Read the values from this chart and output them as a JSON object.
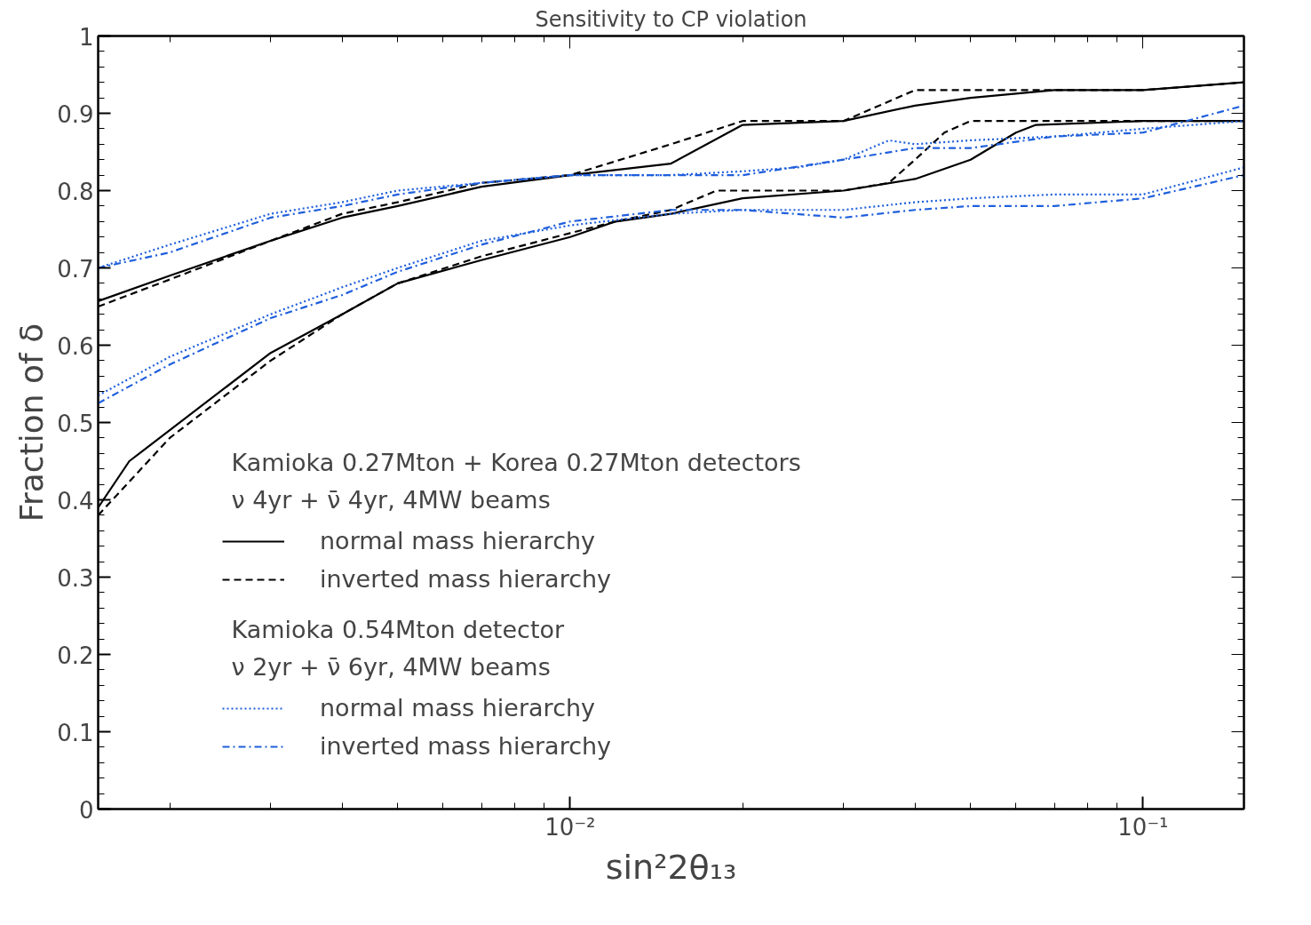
{
  "chart_data": {
    "type": "line",
    "title": "Sensitivity to CP violation",
    "xlabel": "sin²2θ₁₃",
    "ylabel": "Fraction of δ",
    "log": "x",
    "xlim": [
      0.0015,
      0.15
    ],
    "ylim": [
      0,
      1
    ],
    "xticks": [
      {
        "value": 0.002,
        "label": null
      },
      {
        "value": 0.003,
        "label": null
      },
      {
        "value": 0.004,
        "label": null
      },
      {
        "value": 0.005,
        "label": null
      },
      {
        "value": 0.006,
        "label": null
      },
      {
        "value": 0.007,
        "label": null
      },
      {
        "value": 0.008,
        "label": null
      },
      {
        "value": 0.009,
        "label": null
      },
      {
        "value": 0.01,
        "label": "10⁻²"
      },
      {
        "value": 0.02,
        "label": null
      },
      {
        "value": 0.03,
        "label": null
      },
      {
        "value": 0.04,
        "label": null
      },
      {
        "value": 0.05,
        "label": null
      },
      {
        "value": 0.06,
        "label": null
      },
      {
        "value": 0.07,
        "label": null
      },
      {
        "value": 0.08,
        "label": null
      },
      {
        "value": 0.09,
        "label": null
      },
      {
        "value": 0.1,
        "label": "10⁻¹"
      }
    ],
    "yticks": [
      0,
      0.1,
      0.2,
      0.3,
      0.4,
      0.5,
      0.6,
      0.7,
      0.8,
      0.9,
      1
    ],
    "grid": false,
    "legend": "bottom",
    "annotations": [
      "Kamioka 0.27Mton + Korea 0.27Mton detectors",
      "ν 4yr + ν̄ 4yr, 4MW beams",
      "Kamioka 0.54Mton detector",
      "ν 2yr + ν̄ 6yr, 4MW beams"
    ],
    "x": [
      0.0015,
      0.002,
      0.003,
      0.004,
      0.005,
      0.007,
      0.01,
      0.015,
      0.02,
      0.03,
      0.04,
      0.05,
      0.07,
      0.1,
      0.15
    ],
    "series": [
      {
        "name": "normal mass hierarchy",
        "color": "#000000",
        "line_style": "solid",
        "x": [
          0.0015,
          0.0017,
          0.002,
          0.003,
          0.004,
          0.005,
          0.007,
          0.01,
          0.012,
          0.015,
          0.02,
          0.03,
          0.04,
          0.05,
          0.06,
          0.065,
          0.1,
          0.15
        ],
        "values": [
          0.39,
          0.45,
          0.49,
          0.59,
          0.64,
          0.68,
          0.71,
          0.74,
          0.76,
          0.77,
          0.79,
          0.8,
          0.815,
          0.84,
          0.875,
          0.885,
          0.89,
          0.89
        ]
      },
      {
        "name": "inverted mass hierarchy",
        "color": "#000000",
        "line_style": "dashed",
        "x": [
          0.0015,
          0.002,
          0.003,
          0.004,
          0.005,
          0.007,
          0.01,
          0.012,
          0.015,
          0.018,
          0.03,
          0.036,
          0.04,
          0.045,
          0.05,
          0.1,
          0.15
        ],
        "values": [
          0.38,
          0.48,
          0.58,
          0.64,
          0.68,
          0.715,
          0.745,
          0.76,
          0.775,
          0.8,
          0.8,
          0.81,
          0.84,
          0.875,
          0.89,
          0.89,
          0.89
        ]
      },
      {
        "name": "normal mass hierarchy",
        "color": "#1f5fdc",
        "line_style": "dotted",
        "values": [
          0.535,
          0.585,
          0.64,
          0.675,
          0.7,
          0.735,
          0.755,
          0.77,
          0.775,
          0.775,
          0.785,
          0.79,
          0.795,
          0.795,
          0.83
        ]
      },
      {
        "name": "inverted mass hierarchy",
        "color": "#1f5fdc",
        "line_style": "dashdot",
        "values": [
          0.525,
          0.575,
          0.635,
          0.665,
          0.695,
          0.73,
          0.76,
          0.775,
          0.775,
          0.765,
          0.775,
          0.78,
          0.78,
          0.79,
          0.82
        ]
      },
      {
        "color": "#000000",
        "line_style": "solid",
        "values": [
          0.657,
          0.69,
          0.735,
          0.765,
          0.78,
          0.805,
          0.82,
          0.835,
          0.885,
          0.89,
          0.91,
          0.92,
          0.93,
          0.93,
          0.94
        ]
      },
      {
        "color": "#000000",
        "line_style": "dashed",
        "values": [
          0.65,
          0.685,
          0.735,
          0.77,
          0.785,
          0.81,
          0.82,
          0.86,
          0.89,
          0.89,
          0.93,
          0.93,
          0.93,
          0.93,
          0.94
        ]
      },
      {
        "color": "#1f5fdc",
        "line_style": "dotted",
        "x": [
          0.0015,
          0.002,
          0.003,
          0.004,
          0.005,
          0.007,
          0.01,
          0.015,
          0.02,
          0.025,
          0.03,
          0.036,
          0.04,
          0.05,
          0.07,
          0.1,
          0.15
        ],
        "values": [
          0.7,
          0.73,
          0.77,
          0.785,
          0.8,
          0.81,
          0.82,
          0.82,
          0.825,
          0.83,
          0.84,
          0.865,
          0.86,
          0.865,
          0.87,
          0.88,
          0.89
        ]
      },
      {
        "color": "#1f5fdc",
        "line_style": "dashdot",
        "values": [
          0.7,
          0.72,
          0.765,
          0.78,
          0.795,
          0.81,
          0.82,
          0.82,
          0.82,
          0.84,
          0.855,
          0.855,
          0.87,
          0.875,
          0.91
        ]
      }
    ]
  }
}
